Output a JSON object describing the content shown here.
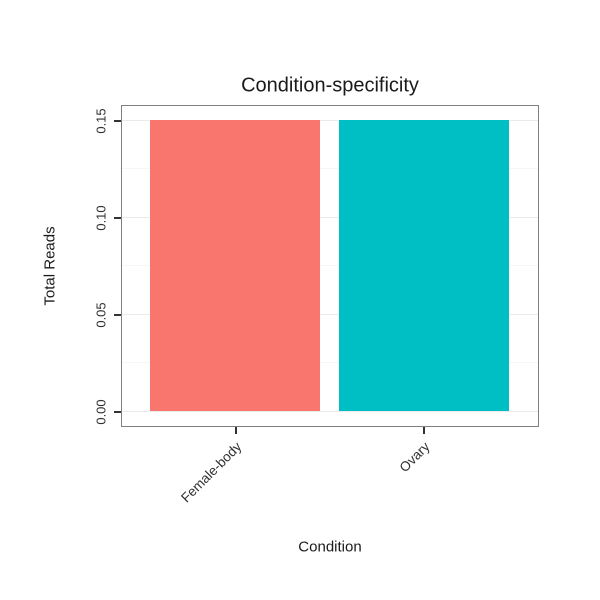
{
  "chart_data": {
    "type": "bar",
    "title": "Condition-specificity",
    "xlabel": "Condition",
    "ylabel": "Total Reads",
    "categories": [
      "Female-body",
      "Ovary"
    ],
    "values": [
      0.15,
      0.15
    ],
    "bar_colors": [
      "#F8766D",
      "#00BFC4"
    ],
    "ylim": [
      0,
      0.15
    ],
    "ytick_labels": [
      "0.00",
      "0.05",
      "0.10",
      "0.15"
    ],
    "ytick_values": [
      0,
      0.05,
      0.1,
      0.15
    ],
    "minor_ytick_values": [
      0.025,
      0.075,
      0.125
    ],
    "grid": "horizontal",
    "legend": "none",
    "panel_border_color": "#7f7f7f",
    "grid_major_color": "#ebebeb",
    "grid_minor_color": "#f6f6f6",
    "tick_color": "#333333"
  }
}
